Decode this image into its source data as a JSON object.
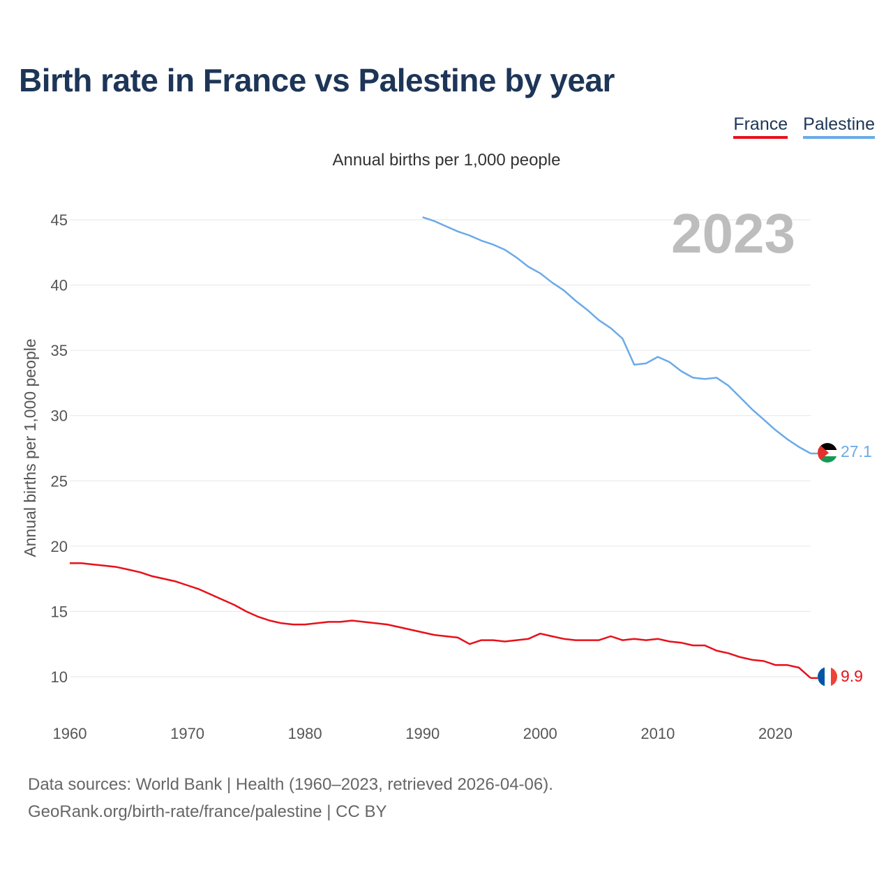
{
  "title": "Birth rate in France vs Palestine by year",
  "subtitle": "Annual births per 1,000 people",
  "legend": [
    {
      "name": "France",
      "color": "#e8101a"
    },
    {
      "name": "Palestine",
      "color": "#6aaae8"
    }
  ],
  "footer": {
    "line1": "Data sources: World Bank | Health (1960–2023, retrieved 2026-04-06).",
    "line2": "GeoRank.org/birth-rate/france/palestine | CC BY"
  },
  "chart_data": {
    "type": "line",
    "title": "Birth rate in France vs Palestine by year",
    "ylabel": "Annual births per 1,000 people",
    "xlabel": "",
    "year_label": "2023",
    "xlim": [
      1960,
      2023
    ],
    "ylim": [
      8,
      46
    ],
    "yticks": [
      10,
      15,
      20,
      25,
      30,
      35,
      40,
      45
    ],
    "xticks": [
      1960,
      1970,
      1980,
      1990,
      2000,
      2010,
      2020
    ],
    "grid": true,
    "series": [
      {
        "name": "France",
        "color": "#e8101a",
        "end_label": "9.9",
        "flag": "france-flag-icon",
        "x": [
          1960,
          1961,
          1962,
          1963,
          1964,
          1965,
          1966,
          1967,
          1968,
          1969,
          1970,
          1971,
          1972,
          1973,
          1974,
          1975,
          1976,
          1977,
          1978,
          1979,
          1980,
          1981,
          1982,
          1983,
          1984,
          1985,
          1986,
          1987,
          1988,
          1989,
          1990,
          1991,
          1992,
          1993,
          1994,
          1995,
          1996,
          1997,
          1998,
          1999,
          2000,
          2001,
          2002,
          2003,
          2004,
          2005,
          2006,
          2007,
          2008,
          2009,
          2010,
          2011,
          2012,
          2013,
          2014,
          2015,
          2016,
          2017,
          2018,
          2019,
          2020,
          2021,
          2022,
          2023
        ],
        "values": [
          18.7,
          18.7,
          18.6,
          18.5,
          18.4,
          18.2,
          18.0,
          17.7,
          17.5,
          17.3,
          17.0,
          16.7,
          16.3,
          15.9,
          15.5,
          15.0,
          14.6,
          14.3,
          14.1,
          14.0,
          14.0,
          14.1,
          14.2,
          14.2,
          14.3,
          14.2,
          14.1,
          14.0,
          13.8,
          13.6,
          13.4,
          13.2,
          13.1,
          13.0,
          12.5,
          12.8,
          12.8,
          12.7,
          12.8,
          12.9,
          13.3,
          13.1,
          12.9,
          12.8,
          12.8,
          12.8,
          13.1,
          12.8,
          12.9,
          12.8,
          12.9,
          12.7,
          12.6,
          12.4,
          12.4,
          12.0,
          11.8,
          11.5,
          11.3,
          11.2,
          10.9,
          10.9,
          10.7,
          9.9
        ]
      },
      {
        "name": "Palestine",
        "color": "#6aaae8",
        "end_label": "27.1",
        "flag": "palestine-flag-icon",
        "x": [
          1990,
          1991,
          1992,
          1993,
          1994,
          1995,
          1996,
          1997,
          1998,
          1999,
          2000,
          2001,
          2002,
          2003,
          2004,
          2005,
          2006,
          2007,
          2008,
          2009,
          2010,
          2011,
          2012,
          2013,
          2014,
          2015,
          2016,
          2017,
          2018,
          2019,
          2020,
          2021,
          2022,
          2023
        ],
        "values": [
          45.2,
          44.9,
          44.5,
          44.1,
          43.8,
          43.4,
          43.1,
          42.7,
          42.1,
          41.4,
          40.9,
          40.2,
          39.6,
          38.8,
          38.1,
          37.3,
          36.7,
          35.9,
          33.9,
          34.0,
          34.5,
          34.1,
          33.4,
          32.9,
          32.8,
          32.9,
          32.3,
          31.4,
          30.5,
          29.7,
          28.9,
          28.2,
          27.6,
          27.1
        ]
      }
    ]
  }
}
